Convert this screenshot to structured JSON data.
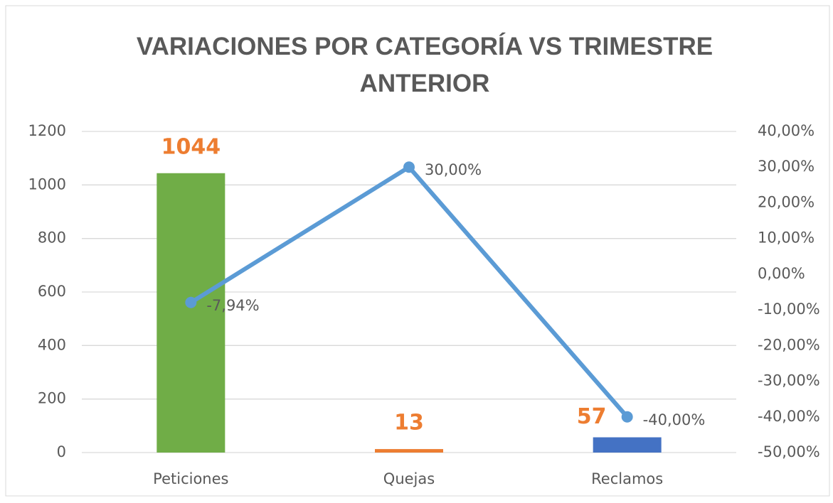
{
  "chart_data": {
    "type": "combo",
    "title": "VARIACIONES POR CATEGORÍA VS TRIMESTRE ANTERIOR",
    "categories": [
      "Peticiones",
      "Quejas",
      "Reclamos"
    ],
    "series": [
      {
        "type": "bar",
        "colors": [
          "#70ad47",
          "#ed7d31",
          "#4472c4"
        ],
        "label_color": "#ed7d31",
        "values": [
          1044,
          13,
          57
        ]
      },
      {
        "type": "line",
        "axis": "y2",
        "color": "#5b9bd5",
        "values": [
          -7.94,
          30,
          -40
        ],
        "value_labels": [
          "-7,94%",
          "30,00%",
          "-40,00%"
        ]
      }
    ],
    "ylim": [
      0,
      1200
    ],
    "yticks": [
      0,
      200,
      400,
      600,
      800,
      1000,
      1200
    ],
    "y2lim": [
      -50,
      40
    ],
    "y2ticks": [
      {
        "value": -50,
        "label": "-50,00%"
      },
      {
        "value": -40,
        "label": "-40,00%"
      },
      {
        "value": -30,
        "label": "-30,00%"
      },
      {
        "value": -20,
        "label": "-20,00%"
      },
      {
        "value": -10,
        "label": "-10,00%"
      },
      {
        "value": 0,
        "label": "0,00%"
      },
      {
        "value": 10,
        "label": "10,00%"
      },
      {
        "value": 20,
        "label": "20,00%"
      },
      {
        "value": 30,
        "label": "30,00%"
      },
      {
        "value": 40,
        "label": "40,00%"
      }
    ],
    "grid": true
  }
}
